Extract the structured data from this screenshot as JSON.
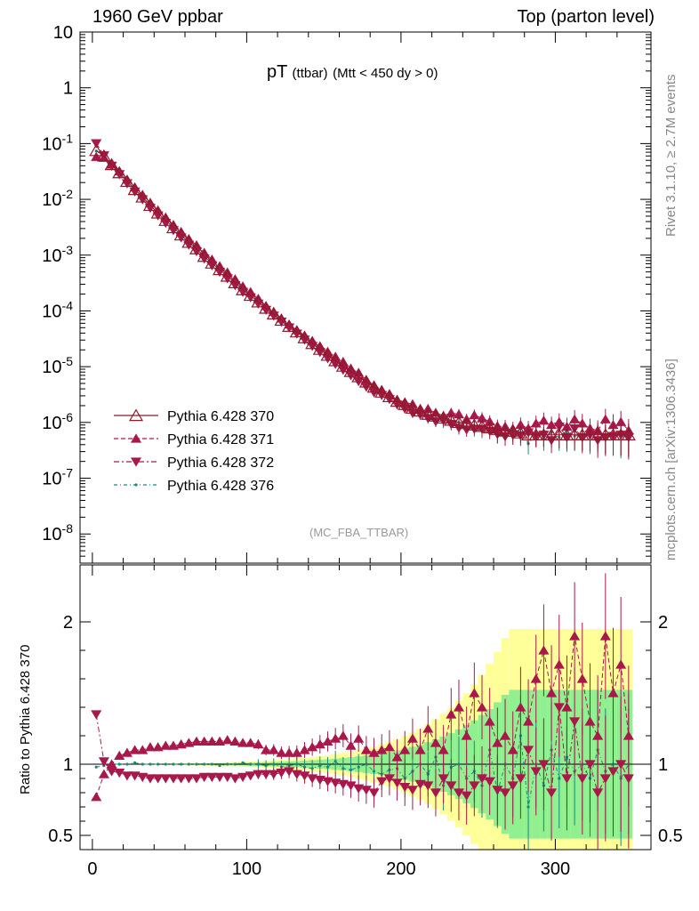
{
  "header": {
    "left": "1960 GeV ppbar",
    "right": "Top (parton level)"
  },
  "title": {
    "main": "pT",
    "sub": "(ttbar)",
    "cut": "(Mtt < 450 dy > 0)"
  },
  "side_labels": {
    "rivet": "Rivet 3.1.10, ≥ 2.7M events",
    "mcplots": "mcplots.cern.ch [arXiv:1306.3436]"
  },
  "analysis_label": "(MC_FBA_TTBAR)",
  "ratio_ylabel": "Ratio to Pythia 6.428 370",
  "colors": {
    "s370": "#8b1a2a",
    "s371": "#a8184a",
    "s372": "#a8184a",
    "s376": "#1a8a7a",
    "band_yellow": "#ffff9a",
    "band_green": "#90f090"
  },
  "chart_data": [
    {
      "type": "scatter",
      "panel": "main",
      "yscale": "log",
      "xlim": [
        -8,
        362
      ],
      "ylim": [
        3e-09,
        10
      ],
      "ytick_labels": [
        "10",
        "1",
        "10^-1",
        "10^-2",
        "10^-3",
        "10^-4",
        "10^-5",
        "10^-6",
        "10^-7",
        "10^-8"
      ],
      "xtick_labels": [
        "0",
        "100",
        "200",
        "300"
      ],
      "legend": {
        "position": "bottom-left",
        "entries": [
          "Pythia 6.428 370",
          "Pythia 6.428 371",
          "Pythia 6.428 372",
          "Pythia 6.428 376"
        ]
      },
      "model": {
        "comment_free_params": true,
        "x_start": 2.5,
        "x_step": 5,
        "n_points": 70
      },
      "series": [
        {
          "name": "Pythia 6.428 370",
          "marker": "open-triangle-up",
          "line": "solid",
          "y": [
            0.075,
            0.06,
            0.042,
            0.03,
            0.021,
            0.015,
            0.011,
            0.0078,
            0.0057,
            0.0042,
            0.0031,
            0.0023,
            0.0017,
            0.0013,
            0.00095,
            0.00072,
            0.00055,
            0.00042,
            0.00032,
            0.00024,
            0.00019,
            0.000145,
            0.000112,
            8.8e-05,
            6.8e-05,
            5.3e-05,
            4.2e-05,
            3.3e-05,
            2.6e-05,
            2.05e-05,
            1.6e-05,
            1.28e-05,
            1.02e-05,
            8.2e-06,
            6.6e-06,
            5.3e-06,
            4.3e-06,
            3.5e-06,
            2.9e-06,
            2.4e-06,
            2.1e-06,
            1.8e-06,
            1.6e-06,
            1.4e-06,
            1.3e-06,
            1.2e-06,
            1.1e-06,
            1e-06,
            9.5e-07,
            9e-07,
            8.5e-07,
            8e-07,
            7.5e-07,
            7e-07,
            7e-07,
            6.5e-07,
            6e-07,
            6e-07,
            6e-07,
            6e-07,
            6e-07,
            6e-07,
            6e-07,
            6e-07,
            6e-07,
            6e-07,
            6e-07,
            6e-07,
            6e-07,
            6e-07
          ]
        },
        {
          "name": "Pythia 6.428 371",
          "marker": "filled-triangle-up",
          "line": "dashed"
        },
        {
          "name": "Pythia 6.428 372",
          "marker": "filled-triangle-down",
          "line": "dash-dot"
        },
        {
          "name": "Pythia 6.428 376",
          "marker": "dot",
          "line": "dash-dot"
        }
      ]
    },
    {
      "type": "scatter",
      "panel": "ratio",
      "ylim": [
        0.4,
        2.4
      ],
      "ytick_labels": [
        "0.5",
        "1",
        "2"
      ],
      "xtick_labels": [
        "0",
        "100",
        "200",
        "300"
      ],
      "ylabel": "Ratio to Pythia 6.428 370",
      "series": [
        {
          "name": "Pythia 6.428 371",
          "y": [
            0.77,
            0.93,
            1.0,
            1.06,
            1.08,
            1.1,
            1.1,
            1.12,
            1.12,
            1.13,
            1.13,
            1.14,
            1.15,
            1.16,
            1.16,
            1.16,
            1.16,
            1.17,
            1.16,
            1.15,
            1.15,
            1.14,
            1.1,
            1.1,
            1.08,
            1.08,
            1.08,
            1.1,
            1.12,
            1.14,
            1.16,
            1.18,
            1.2,
            1.13,
            1.18,
            1.1,
            1.08,
            1.1,
            1.12,
            1.05,
            1.1,
            1.18,
            1.1,
            1.25,
            1.15,
            1.1,
            1.35,
            1.4,
            1.2,
            1.5,
            1.4,
            1.3,
            1.15,
            1.2,
            1.1,
            1.4,
            1.3,
            1.6,
            1.8,
            1.5,
            1.7,
            1.4,
            1.9,
            1.6,
            1.3,
            1.2,
            1.9,
            1.5,
            1.7,
            1.2
          ]
        },
        {
          "name": "Pythia 6.428 372",
          "y": [
            1.35,
            1.02,
            0.95,
            0.94,
            0.92,
            0.92,
            0.91,
            0.9,
            0.9,
            0.9,
            0.9,
            0.9,
            0.9,
            0.9,
            0.91,
            0.91,
            0.91,
            0.91,
            0.9,
            0.91,
            0.92,
            0.93,
            0.93,
            0.93,
            0.94,
            0.95,
            0.93,
            0.92,
            0.9,
            0.89,
            0.88,
            0.87,
            0.86,
            0.85,
            0.83,
            0.82,
            0.8,
            0.88,
            0.9,
            0.87,
            0.84,
            0.82,
            0.86,
            0.85,
            0.8,
            0.9,
            0.85,
            0.8,
            0.78,
            0.85,
            0.9,
            0.88,
            0.82,
            0.8,
            0.85,
            0.9,
            1.1,
            0.95,
            1.0,
            0.8,
            1.4,
            0.9,
            1.3,
            0.9,
            1.0,
            0.8,
            0.9,
            0.95,
            1.0,
            0.9
          ]
        },
        {
          "name": "Pythia 6.428 376",
          "y": [
            0.98,
            0.99,
            1.0,
            1.0,
            1.0,
            1.01,
            1.0,
            1.0,
            1.0,
            1.0,
            1.0,
            1.0,
            1.0,
            1.0,
            1.0,
            1.0,
            0.99,
            1.0,
            1.0,
            1.01,
            1.0,
            1.0,
            0.99,
            1.0,
            0.98,
            0.99,
            1.0,
            0.98,
            0.97,
            0.99,
            0.98,
            1.02,
            0.97,
            0.96,
            0.98,
            1.0,
            0.95,
            0.93,
            0.96,
            0.97,
            0.9,
            0.95,
            1.0,
            0.93,
            1.05,
            0.85,
            0.98,
            1.0,
            0.9,
            0.95,
            0.85,
            1.1,
            0.8,
            1.0,
            0.9,
            1.2,
            0.7,
            1.0,
            0.85,
            1.1,
            0.9,
            1.05,
            0.95,
            1.0,
            0.9,
            1.1,
            0.95,
            1.0,
            0.9,
            1.0
          ]
        }
      ]
    }
  ]
}
